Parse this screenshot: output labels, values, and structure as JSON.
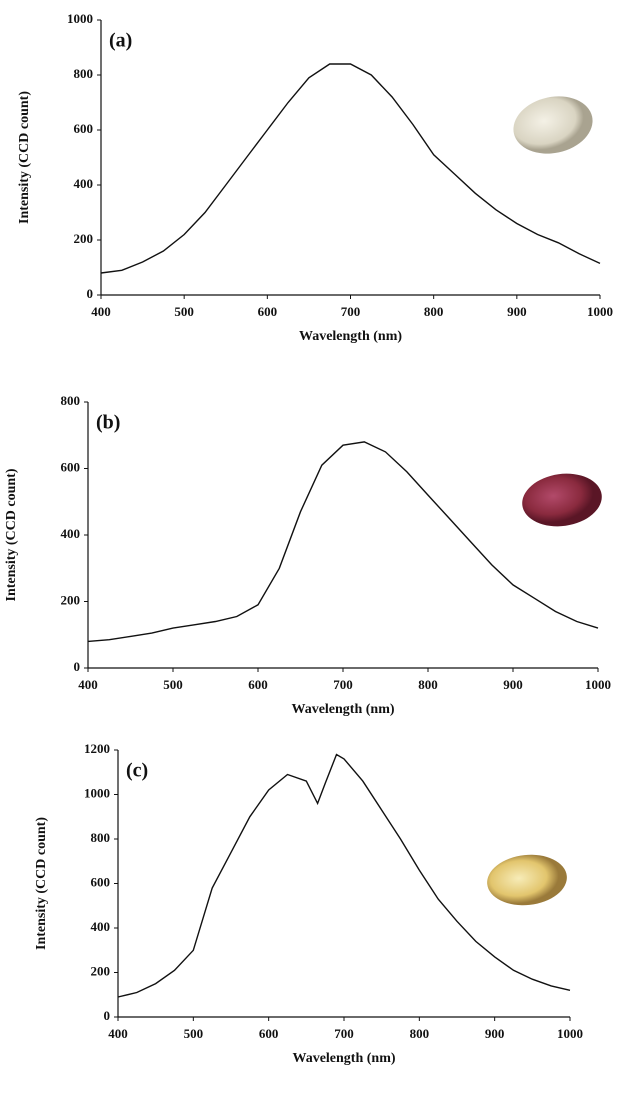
{
  "chart_data": [
    {
      "type": "line",
      "annotation": "(a)",
      "x_label": "Wavelength (nm)",
      "y_label": "Intensity (CCD count)",
      "color": "#111111",
      "x": [
        400,
        425,
        450,
        475,
        500,
        525,
        550,
        575,
        600,
        625,
        650,
        675,
        700,
        725,
        750,
        775,
        800,
        825,
        850,
        875,
        900,
        925,
        950,
        975,
        1000
      ],
      "values": [
        80,
        90,
        120,
        160,
        220,
        300,
        400,
        500,
        600,
        700,
        790,
        840,
        840,
        800,
        720,
        620,
        510,
        440,
        370,
        310,
        260,
        220,
        190,
        150,
        115
      ],
      "xlim": [
        400,
        1000
      ],
      "xticks": [
        400,
        500,
        600,
        700,
        800,
        900,
        1000
      ],
      "ylim": [
        0,
        1000
      ],
      "yticks": [
        0,
        200,
        400,
        600,
        800,
        1000
      ]
    },
    {
      "type": "line",
      "annotation": "(b)",
      "x_label": "Wavelength (nm)",
      "y_label": "Intensity (CCD count)",
      "color": "#111111",
      "x": [
        400,
        425,
        450,
        475,
        500,
        525,
        550,
        575,
        600,
        625,
        650,
        675,
        700,
        725,
        750,
        775,
        800,
        825,
        850,
        875,
        900,
        925,
        950,
        975,
        1000
      ],
      "values": [
        80,
        85,
        95,
        105,
        120,
        130,
        140,
        155,
        190,
        300,
        470,
        610,
        670,
        680,
        650,
        590,
        520,
        450,
        380,
        310,
        250,
        210,
        170,
        140,
        120
      ],
      "xlim": [
        400,
        1000
      ],
      "xticks": [
        400,
        500,
        600,
        700,
        800,
        900,
        1000
      ],
      "ylim": [
        0,
        800
      ],
      "yticks": [
        0,
        200,
        400,
        600,
        800
      ]
    },
    {
      "type": "line",
      "annotation": "(c)",
      "x_label": "Wavelength (nm)",
      "y_label": "Intensity (CCD count)",
      "color": "#111111",
      "x": [
        400,
        425,
        450,
        475,
        500,
        525,
        550,
        575,
        600,
        625,
        650,
        665,
        675,
        690,
        700,
        725,
        750,
        775,
        800,
        825,
        850,
        875,
        900,
        925,
        950,
        975,
        1000
      ],
      "values": [
        90,
        110,
        150,
        210,
        300,
        580,
        740,
        900,
        1020,
        1090,
        1060,
        960,
        1050,
        1180,
        1160,
        1060,
        930,
        800,
        660,
        530,
        430,
        340,
        270,
        210,
        170,
        140,
        120
      ],
      "xlim": [
        400,
        1000
      ],
      "xticks": [
        400,
        500,
        600,
        700,
        800,
        900,
        1000
      ],
      "ylim": [
        0,
        1200
      ],
      "yticks": [
        0,
        200,
        400,
        600,
        800,
        1000,
        1200
      ]
    }
  ]
}
